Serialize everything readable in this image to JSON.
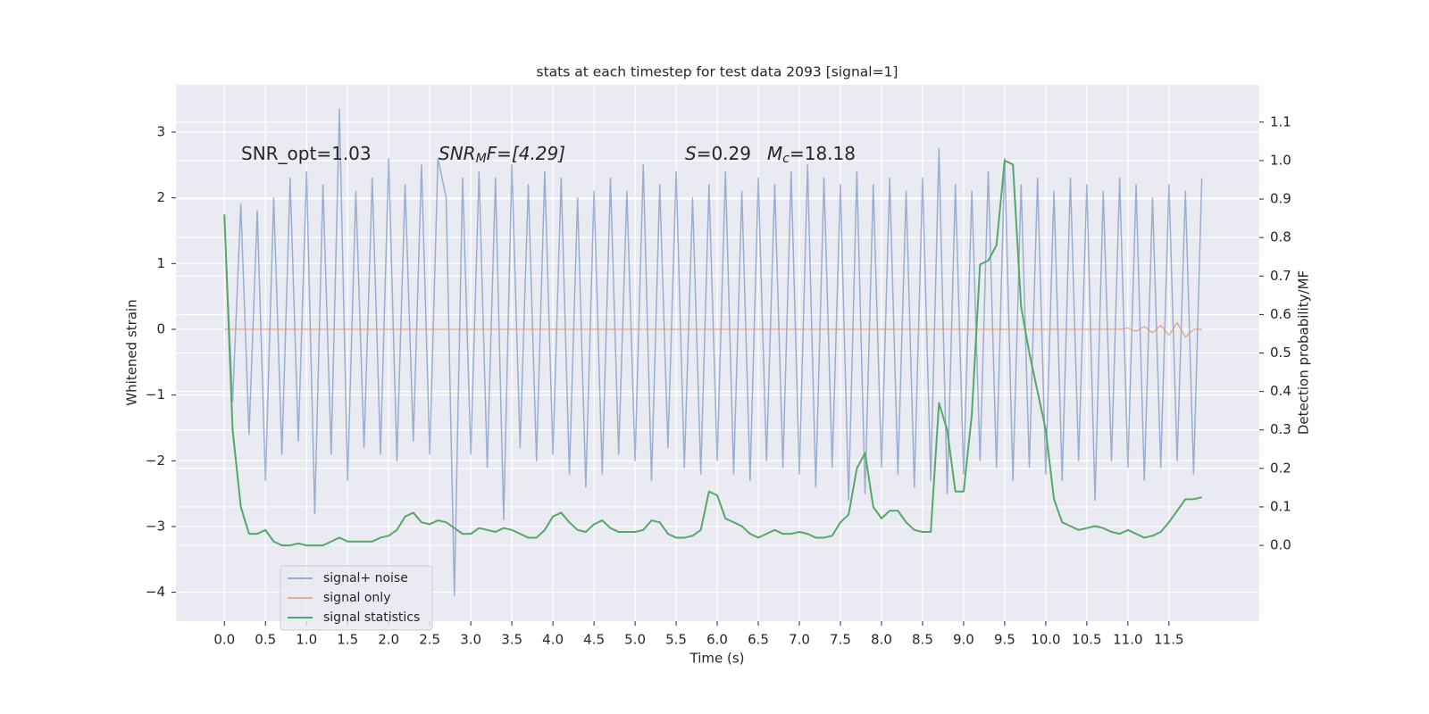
{
  "chart_data": {
    "type": "line",
    "title": "stats at each timestep for test data 2093 [signal=1]",
    "x_label": "Time (s)",
    "y_label": "Whitened strain",
    "y2_label": "Detection probability/MF",
    "annotations": [
      {
        "base": "SNR_opt=1.03"
      },
      {
        "base": "SNR",
        "sub": "M",
        "rest": "F=[4.29]"
      },
      {
        "base": "S",
        "rest": "=0.29"
      },
      {
        "base": "M",
        "sub": "c",
        "rest": "=18.18"
      }
    ],
    "grid": true,
    "legend": "lower left",
    "xlim": [
      -0.59,
      12.6
    ],
    "ylim": [
      -4.44,
      3.72
    ],
    "y2lim": [
      -0.197,
      1.197
    ],
    "xticks": [
      {
        "value": 0,
        "label": "0.0"
      },
      0.5,
      {
        "value": 1,
        "label": "1.0"
      },
      1.5,
      {
        "value": 2,
        "label": "2.0"
      },
      2.5,
      {
        "value": 3,
        "label": "3.0"
      },
      3.5,
      {
        "value": 4,
        "label": "4.0"
      },
      4.5,
      {
        "value": 5,
        "label": "5.0"
      },
      5.5,
      {
        "value": 6,
        "label": "6.0"
      },
      6.5,
      {
        "value": 7,
        "label": "7.0"
      },
      7.5,
      {
        "value": 8,
        "label": "8.0"
      },
      8.5,
      {
        "value": 9,
        "label": "9.0"
      },
      9.5,
      {
        "value": 10,
        "label": "10.0"
      },
      10.5,
      {
        "value": 11,
        "label": "11.0"
      },
      11.5
    ],
    "yticks": [
      3,
      2,
      1,
      0,
      {
        "value": -1,
        "label": "−1"
      },
      {
        "value": -2,
        "label": "−2"
      },
      {
        "value": -3,
        "label": "−3"
      },
      {
        "value": -4,
        "label": "−4"
      }
    ],
    "y2ticks": [
      {
        "value": 0,
        "label": "0.0"
      },
      0.1,
      0.2,
      0.3,
      0.4,
      0.5,
      0.6,
      0.7,
      0.8,
      0.9,
      {
        "value": 1,
        "label": "1.0"
      },
      1.1
    ],
    "x": [
      0,
      0.1,
      0.2,
      0.3,
      0.4,
      0.5,
      0.6,
      0.7,
      0.8,
      0.9,
      1,
      1.1,
      1.2,
      1.3,
      1.4,
      1.5,
      1.6,
      1.7,
      1.8,
      1.9,
      2,
      2.1,
      2.2,
      2.3,
      2.4,
      2.5,
      2.6,
      2.7,
      2.8,
      2.9,
      3,
      3.1,
      3.2,
      3.3,
      3.4,
      3.5,
      3.6,
      3.7,
      3.8,
      3.9,
      4,
      4.1,
      4.2,
      4.3,
      4.4,
      4.5,
      4.6,
      4.7,
      4.8,
      4.9,
      5,
      5.1,
      5.2,
      5.3,
      5.4,
      5.5,
      5.6,
      5.7,
      5.8,
      5.9,
      6,
      6.1,
      6.2,
      6.3,
      6.4,
      6.5,
      6.6,
      6.7,
      6.8,
      6.9,
      7,
      7.1,
      7.2,
      7.3,
      7.4,
      7.5,
      7.6,
      7.7,
      7.8,
      7.9,
      8,
      8.1,
      8.2,
      8.3,
      8.4,
      8.5,
      8.6,
      8.7,
      8.8,
      8.9,
      9,
      9.1,
      9.2,
      9.3,
      9.4,
      9.5,
      9.6,
      9.7,
      9.8,
      9.9,
      10,
      10.1,
      10.2,
      10.3,
      10.4,
      10.5,
      10.6,
      10.7,
      10.8,
      10.9,
      11,
      11.1,
      11.2,
      11.3,
      11.4,
      11.5,
      11.6,
      11.7,
      11.8,
      11.9
    ],
    "series": [
      {
        "name": "signal+ noise",
        "color": "#4c72b0",
        "opacity": 0.5,
        "axis": "y",
        "values": [
          1.7,
          -1.1,
          1.9,
          -1.6,
          1.8,
          -2.3,
          2.0,
          -1.9,
          2.3,
          -1.7,
          2.4,
          -2.8,
          2.2,
          -1.9,
          3.35,
          -2.3,
          2.1,
          -1.8,
          2.3,
          -1.9,
          2.6,
          -2.0,
          2.2,
          -1.7,
          2.5,
          -1.9,
          2.6,
          2.0,
          -4.05,
          2.3,
          -1.9,
          2.4,
          -2.1,
          2.3,
          -2.9,
          2.5,
          -1.8,
          2.2,
          -2.0,
          2.4,
          -1.9,
          2.3,
          -2.2,
          2.0,
          -2.4,
          2.1,
          -2.2,
          2.3,
          -1.9,
          2.1,
          -2.0,
          2.5,
          -2.3,
          2.2,
          -1.8,
          2.4,
          -2.1,
          2.0,
          -2.2,
          2.2,
          -2.0,
          2.4,
          -2.2,
          2.1,
          -2.3,
          2.3,
          -2.0,
          2.2,
          -2.1,
          2.4,
          -2.2,
          2.5,
          -2.4,
          2.3,
          -2.1,
          2.2,
          -2.6,
          2.4,
          -2.5,
          2.2,
          -2.1,
          2.3,
          -2.2,
          2.1,
          -2.4,
          2.3,
          -2.3,
          2.75,
          -2.5,
          2.2,
          -2.2,
          2.1,
          -2.0,
          2.4,
          -2.1,
          2.6,
          -2.3,
          2.2,
          -2.1,
          2.3,
          -2.2,
          2.1,
          -2.3,
          2.3,
          -2.0,
          2.2,
          -2.6,
          2.1,
          -2.0,
          2.3,
          -2.1,
          2.2,
          -2.3,
          2.0,
          -2.1,
          2.2,
          -2.0,
          2.1,
          -2.2,
          2.3
        ]
      },
      {
        "name": "signal only",
        "color": "#dd8452",
        "opacity": 0.6,
        "axis": "y",
        "values": [
          0,
          0,
          0,
          0,
          0,
          0,
          0,
          0,
          0,
          0,
          0,
          0,
          0,
          0,
          0,
          0,
          0,
          0,
          0,
          0,
          0,
          0,
          0,
          0,
          0,
          0,
          0,
          0,
          0,
          0,
          0,
          0,
          0,
          0,
          0,
          0,
          0,
          0,
          0,
          0,
          0,
          0,
          0,
          0,
          0,
          0,
          0,
          0,
          0,
          0,
          0,
          0,
          0,
          0,
          0,
          0,
          0,
          0,
          0,
          0,
          0,
          0,
          0,
          0,
          0,
          0,
          0,
          0,
          0,
          0,
          0,
          0,
          0,
          0,
          0,
          0,
          0,
          0,
          0,
          0,
          0,
          0,
          0,
          0,
          0,
          0,
          0,
          0,
          0,
          0,
          0,
          0,
          0,
          0,
          0,
          0,
          0,
          0,
          0,
          0,
          0,
          0,
          0,
          0,
          0,
          0,
          0,
          0,
          0,
          0,
          0.02,
          -0.03,
          0.04,
          -0.05,
          0.06,
          -0.09,
          0.1,
          -0.12,
          0,
          0
        ]
      },
      {
        "name": "signal statistics",
        "color": "#55a868",
        "opacity": 1,
        "axis": "y2",
        "values": [
          0.86,
          0.3,
          0.1,
          0.03,
          0.03,
          0.04,
          0.01,
          0.0,
          0.0,
          0.005,
          0.0,
          0.0,
          0.0,
          0.01,
          0.02,
          0.01,
          0.01,
          0.01,
          0.01,
          0.02,
          0.025,
          0.04,
          0.075,
          0.085,
          0.06,
          0.055,
          0.065,
          0.06,
          0.045,
          0.03,
          0.03,
          0.045,
          0.04,
          0.035,
          0.045,
          0.04,
          0.03,
          0.02,
          0.02,
          0.04,
          0.075,
          0.085,
          0.06,
          0.04,
          0.035,
          0.055,
          0.065,
          0.045,
          0.035,
          0.035,
          0.035,
          0.04,
          0.065,
          0.06,
          0.03,
          0.02,
          0.02,
          0.025,
          0.04,
          0.14,
          0.13,
          0.07,
          0.06,
          0.05,
          0.03,
          0.02,
          0.03,
          0.04,
          0.03,
          0.03,
          0.035,
          0.03,
          0.02,
          0.02,
          0.025,
          0.06,
          0.08,
          0.2,
          0.24,
          0.1,
          0.07,
          0.09,
          0.09,
          0.06,
          0.04,
          0.035,
          0.035,
          0.37,
          0.3,
          0.14,
          0.14,
          0.34,
          0.73,
          0.74,
          0.78,
          1.0,
          0.99,
          0.62,
          0.5,
          0.4,
          0.3,
          0.12,
          0.06,
          0.05,
          0.04,
          0.045,
          0.05,
          0.045,
          0.035,
          0.03,
          0.04,
          0.03,
          0.02,
          0.025,
          0.035,
          0.06,
          0.09,
          0.12,
          0.12,
          0.125
        ]
      }
    ]
  }
}
